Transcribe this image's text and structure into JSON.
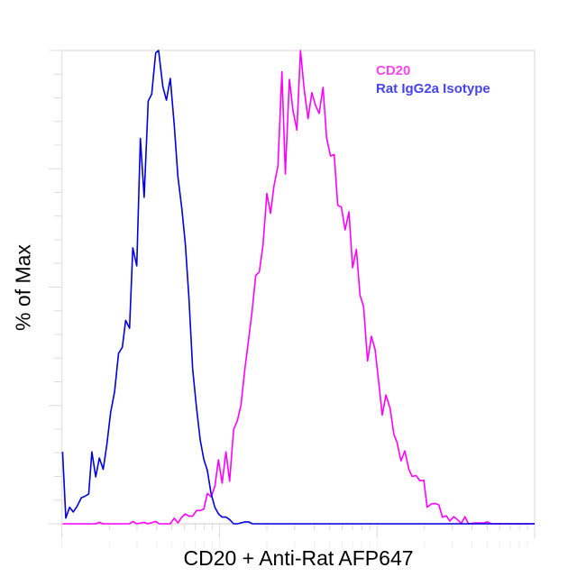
{
  "chart_data": {
    "type": "line",
    "title": "",
    "xlabel": "CD20 + Anti-Rat AFP647",
    "ylabel": "% of Max",
    "x_scale": "log",
    "xlim": [
      1,
      1000
    ],
    "ylim": [
      0,
      100
    ],
    "x_tick_labels_shown": false,
    "y_tick_labels_shown": false,
    "grid": false,
    "legend_position": "top-right",
    "series": [
      {
        "name": "CD20",
        "color": "#ff00ff",
        "legend_color": "#ff44ee",
        "x": [
          1.01,
          1.65,
          1.73,
          1.82,
          2.68,
          2.83,
          2.99,
          3.33,
          3.51,
          3.94,
          4.15,
          4.88,
          5.17,
          5.45,
          5.77,
          6.08,
          6.41,
          6.76,
          7.16,
          7.55,
          7.96,
          8.38,
          8.87,
          9.35,
          9.86,
          10.4,
          11.0,
          11.6,
          12.3,
          13.0,
          13.7,
          14.5,
          15.2,
          16.1,
          17.0,
          17.9,
          18.9,
          20.0,
          21.1,
          22.2,
          23.5,
          24.9,
          26.2,
          27.8,
          29.3,
          31.0,
          32.7,
          34.5,
          36.5,
          38.6,
          40.7,
          42.9,
          45.4,
          47.9,
          50.7,
          53.5,
          56.3,
          59.4,
          62.7,
          66.4,
          70.0,
          74.0,
          78.0,
          82.2,
          87.1,
          92.2,
          97.2,
          102,
          108,
          114,
          121,
          128,
          134,
          142,
          150,
          159,
          167,
          177,
          187,
          198,
          208,
          221,
          233,
          247,
          260,
          275,
          290,
          307,
          323,
          343,
          361,
          381,
          418,
          476,
          502,
          532,
          1000
        ],
        "y": [
          0,
          0,
          0.3,
          0,
          0,
          0.5,
          0,
          0.3,
          0,
          0.5,
          0,
          0,
          1.2,
          0.2,
          1.4,
          2.1,
          1.6,
          1.6,
          2.8,
          2.8,
          3.1,
          6.4,
          5.7,
          7.9,
          13.5,
          8.6,
          15.2,
          9.0,
          19.9,
          21.8,
          25.1,
          32.7,
          38.1,
          44.9,
          52.5,
          53.2,
          58.8,
          69.8,
          65.6,
          71.4,
          75.6,
          95.5,
          73.9,
          93.9,
          87.3,
          83.2,
          100,
          91.8,
          85.6,
          91.1,
          88.4,
          86.7,
          92.2,
          81.5,
          77.7,
          78.0,
          67.3,
          66.9,
          62.1,
          65.9,
          54.1,
          58.0,
          48.3,
          45.9,
          34.4,
          39.6,
          36.9,
          30.6,
          23.0,
          27.2,
          24.4,
          18.9,
          17.2,
          13.3,
          15.4,
          11.6,
          10.0,
          10.2,
          9.1,
          9.2,
          3.5,
          4.2,
          4.3,
          4.0,
          1.4,
          1.7,
          0.6,
          1.5,
          0.9,
          0.1,
          1.5,
          0,
          0.2,
          0.2,
          0.4,
          0,
          0
        ]
      },
      {
        "name": "Rat IgG2a Isotype",
        "color": "#0000dd",
        "legend_color": "#4444ee",
        "x": [
          1.01,
          1.06,
          1.12,
          1.18,
          1.25,
          1.33,
          1.4,
          1.48,
          1.55,
          1.64,
          1.73,
          1.83,
          1.93,
          2.04,
          2.16,
          2.29,
          2.42,
          2.54,
          2.69,
          2.82,
          2.99,
          3.15,
          3.33,
          3.53,
          3.72,
          3.94,
          4.11,
          4.37,
          4.61,
          4.88,
          5.17,
          5.45,
          5.77,
          6.08,
          6.41,
          6.76,
          7.16,
          7.55,
          7.96,
          8.38,
          8.84,
          9.35,
          9.86,
          10.4,
          11.0,
          11.6,
          12.3,
          13.0,
          14.5,
          15.3,
          16.2,
          1000
        ],
        "y": [
          15.2,
          1.2,
          3.5,
          2.5,
          3.7,
          5.5,
          5.8,
          6.3,
          15.2,
          9.9,
          13.9,
          11.5,
          16.7,
          23.5,
          27.9,
          36.0,
          37.3,
          43.0,
          41.3,
          58.3,
          54.5,
          81.4,
          69.0,
          89.3,
          90.8,
          99.5,
          100,
          92.4,
          89.5,
          94.1,
          84.2,
          73.4,
          66.6,
          59.1,
          47.6,
          32.7,
          24.5,
          17.7,
          13.6,
          11.3,
          6.5,
          3.5,
          2.1,
          1.4,
          1.4,
          0.9,
          0,
          0,
          0.4,
          0.4,
          0,
          0
        ]
      }
    ]
  }
}
